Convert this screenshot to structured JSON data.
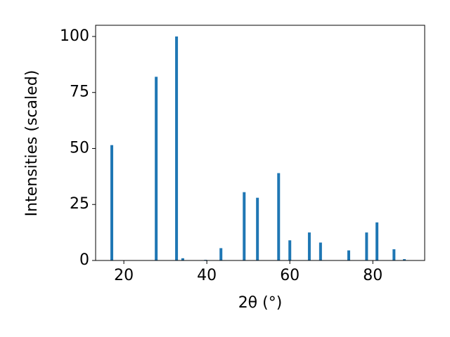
{
  "chart_data": {
    "type": "bar",
    "x_label": "2θ (°)",
    "y_label": "Intensities (scaled)",
    "x": [
      17.1,
      27.8,
      32.7,
      34.2,
      39.7,
      43.4,
      49.0,
      52.2,
      57.3,
      60.0,
      64.7,
      67.4,
      74.2,
      78.5,
      81.0,
      85.1,
      87.6
    ],
    "values": [
      51.5,
      82,
      100,
      1,
      0.3,
      5.5,
      30.5,
      28,
      39,
      9,
      12.5,
      8,
      4.5,
      12.5,
      17,
      5,
      0.6
    ],
    "color": "#1f77b4",
    "xlim": [
      13.2,
      92.5
    ],
    "xticks": [
      20,
      40,
      60,
      80
    ],
    "ylim": [
      0,
      105
    ],
    "yticks": [
      0,
      25,
      50,
      75,
      100
    ]
  }
}
